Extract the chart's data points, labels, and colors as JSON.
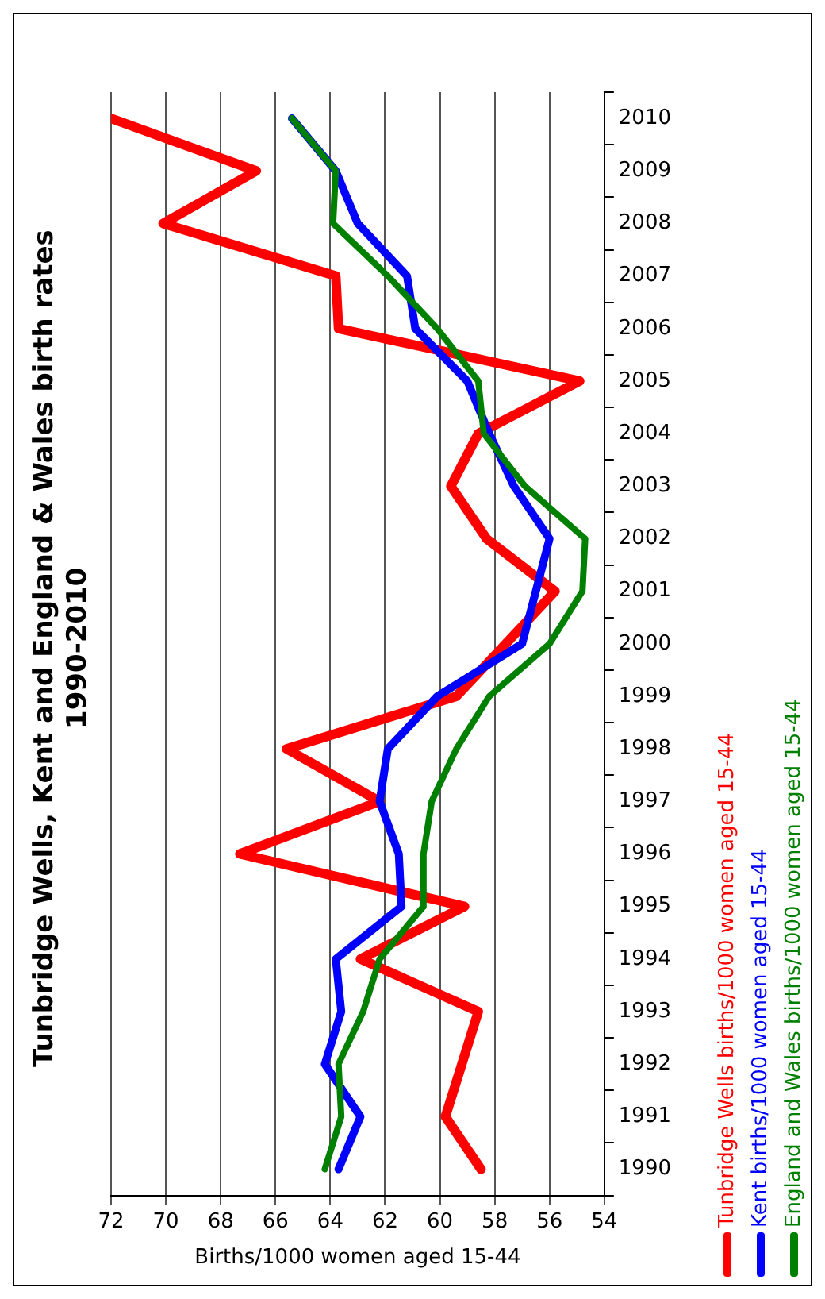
{
  "chart_data": {
    "type": "line",
    "orientation": "horizontal",
    "title": "Tunbridge Wells, Kent and England & Wales birth rates\n1990-2010",
    "xlabel": "Births/1000 women aged 15-44",
    "categories": [
      "2010",
      "2009",
      "2008",
      "2007",
      "2006",
      "2005",
      "2004",
      "2003",
      "2002",
      "2001",
      "2000",
      "1999",
      "1998",
      "1997",
      "1996",
      "1995",
      "1994",
      "1993",
      "1992",
      "1991",
      "1990"
    ],
    "series": [
      {
        "name": "Tunbridge Wells births/1000 women aged 15-44",
        "color": "#ff0000",
        "values": [
          72,
          66.7,
          70.1,
          63.8,
          63.7,
          54.9,
          58.6,
          59.6,
          58.3,
          55.8,
          57.6,
          59.4,
          65.6,
          62.2,
          67.3,
          59.1,
          62.9,
          58.6,
          59.2,
          59.8,
          58.5
        ]
      },
      {
        "name": "Kent births/1000 women aged 15-44",
        "color": "#0000ff",
        "values": [
          65.4,
          63.8,
          63.0,
          61.2,
          60.9,
          59.0,
          58.2,
          57.3,
          56.0,
          56.5,
          57.0,
          60.1,
          61.9,
          62.2,
          61.5,
          61.4,
          63.8,
          63.6,
          64.2,
          62.9,
          63.7
        ]
      },
      {
        "name": "England and Wales births/1000 women aged 15-44",
        "color": "#008000",
        "values": [
          65.4,
          63.8,
          63.9,
          61.9,
          60.1,
          58.6,
          58.4,
          56.9,
          54.7,
          54.8,
          56.0,
          58.2,
          59.4,
          60.3,
          60.6,
          60.6,
          62.2,
          62.8,
          63.7,
          63.6,
          64.2
        ]
      }
    ],
    "xlim": [
      72,
      54
    ],
    "xticks": [
      72,
      70,
      68,
      66,
      64,
      62,
      60,
      58,
      56,
      54
    ],
    "grid": "x",
    "legend": "right",
    "marker": "none",
    "line_style": "solid"
  }
}
